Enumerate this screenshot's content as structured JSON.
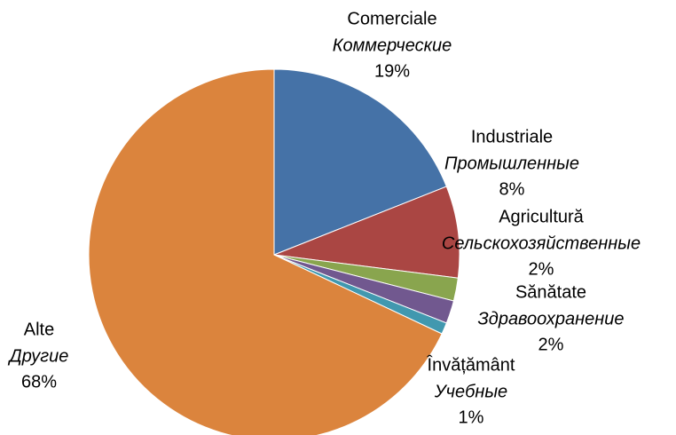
{
  "chart_data": {
    "type": "pie",
    "categories": [
      "Comerciale",
      "Industriale",
      "Agricultură",
      "Sănătate",
      "Învățământ",
      "Alte"
    ],
    "translations": [
      "Коммерческие",
      "Промышленные",
      "Сельскохозяйственные",
      "Здравоохранение",
      "Учебные",
      "Другие"
    ],
    "values": [
      19,
      8,
      2,
      2,
      1,
      68
    ],
    "value_labels": [
      "19%",
      "8%",
      "2%",
      "2%",
      "1%",
      "68%"
    ],
    "colors": [
      "#4572a7",
      "#aa4643",
      "#89a54e",
      "#71588f",
      "#4198af",
      "#db843d"
    ]
  }
}
